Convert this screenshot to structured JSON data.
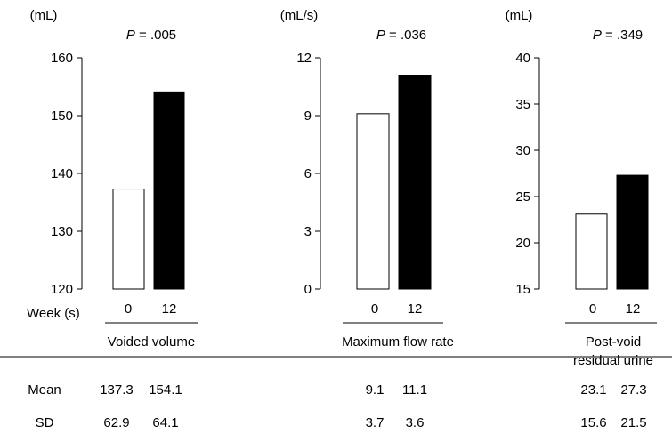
{
  "week_label": "Week (s)",
  "chart_data": [
    {
      "type": "bar",
      "unit": "(mL)",
      "p_prefix": "P",
      "p_value": " = .005",
      "title_lines": [
        "Voided volume"
      ],
      "categories": [
        "0",
        "12"
      ],
      "values": [
        137.3,
        154.1
      ],
      "ylim": [
        120,
        160
      ],
      "yticks": [
        120,
        130,
        140,
        150,
        160
      ],
      "colors": [
        "#ffffff",
        "#000000"
      ]
    },
    {
      "type": "bar",
      "unit": "(mL/s)",
      "p_prefix": "P",
      "p_value": " = .036",
      "title_lines": [
        "Maximum flow rate"
      ],
      "categories": [
        "0",
        "12"
      ],
      "values": [
        9.1,
        11.1
      ],
      "ylim": [
        0,
        12
      ],
      "yticks": [
        0,
        3,
        6,
        9,
        12
      ],
      "colors": [
        "#ffffff",
        "#000000"
      ]
    },
    {
      "type": "bar",
      "unit": "(mL)",
      "p_prefix": "P",
      "p_value": " = .349",
      "title_lines": [
        "Post-void",
        "residual urine"
      ],
      "categories": [
        "0",
        "12"
      ],
      "values": [
        23.1,
        27.3
      ],
      "ylim": [
        15,
        40
      ],
      "yticks": [
        15,
        20,
        25,
        30,
        35,
        40
      ],
      "colors": [
        "#ffffff",
        "#000000"
      ]
    }
  ],
  "table": {
    "rows": [
      {
        "label": "Mean",
        "values": [
          "137.3",
          "154.1",
          "9.1",
          "11.1",
          "23.1",
          "27.3"
        ]
      },
      {
        "label": "SD",
        "values": [
          "62.9",
          "64.1",
          "3.7",
          "3.6",
          "15.6",
          "21.5"
        ]
      }
    ]
  }
}
